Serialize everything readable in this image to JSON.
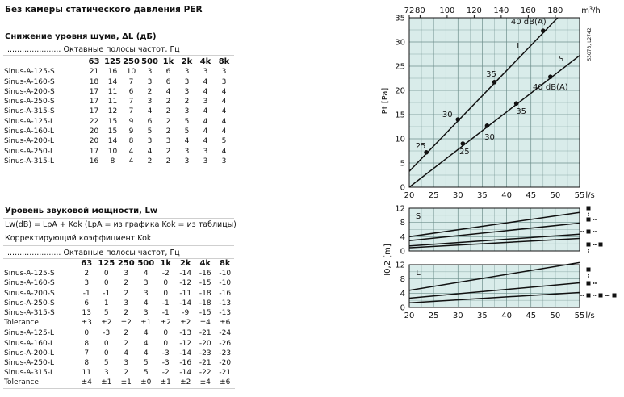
{
  "page": {
    "title": "Без камеры статического давления PER"
  },
  "attenuation": {
    "heading": "Снижение уровня шума, ΔL (дБ)",
    "band_label": "....................... Октавные полосы частот, Гц",
    "headers": [
      "63",
      "125",
      "250",
      "500",
      "1k",
      "2k",
      "4k",
      "8k"
    ],
    "rows": [
      {
        "name": "Sinus-A-125-S",
        "values": [
          "21",
          "16",
          "10",
          "3",
          "6",
          "3",
          "3",
          "3"
        ]
      },
      {
        "name": "Sinus-A-160-S",
        "values": [
          "18",
          "14",
          "7",
          "3",
          "6",
          "3",
          "4",
          "3"
        ]
      },
      {
        "name": "Sinus-A-200-S",
        "values": [
          "17",
          "11",
          "6",
          "2",
          "4",
          "3",
          "4",
          "4"
        ]
      },
      {
        "name": "Sinus-A-250-S",
        "values": [
          "17",
          "11",
          "7",
          "3",
          "2",
          "2",
          "3",
          "4"
        ]
      },
      {
        "name": "Sinus-A-315-S",
        "values": [
          "17",
          "12",
          "7",
          "4",
          "2",
          "3",
          "4",
          "4"
        ]
      },
      {
        "name": "Sinus-A-125-L",
        "values": [
          "22",
          "15",
          "9",
          "6",
          "2",
          "5",
          "4",
          "4"
        ]
      },
      {
        "name": "Sinus-A-160-L",
        "values": [
          "20",
          "15",
          "9",
          "5",
          "2",
          "5",
          "4",
          "4"
        ]
      },
      {
        "name": "Sinus-A-200-L",
        "values": [
          "20",
          "14",
          "8",
          "3",
          "3",
          "4",
          "4",
          "5"
        ]
      },
      {
        "name": "Sinus-A-250-L",
        "values": [
          "17",
          "10",
          "4",
          "4",
          "2",
          "3",
          "3",
          "4"
        ]
      },
      {
        "name": "Sinus-A-315-L",
        "values": [
          "16",
          "8",
          "4",
          "2",
          "2",
          "3",
          "3",
          "3"
        ]
      }
    ]
  },
  "sound_power": {
    "heading": "Уровень звуковой мощности, Lw",
    "formula": "Lw(dB) = LpA + Kok (LpA = из графика Kok = из таблицы)",
    "correction": "Корректирующий коэффициент Kok",
    "band_label": "....................... Октавные полосы частот, Гц",
    "headers": [
      "63",
      "125",
      "250",
      "500",
      "1k",
      "2k",
      "4k",
      "8k"
    ],
    "rows": [
      {
        "name": "Sinus-A-125-S",
        "values": [
          "2",
          "0",
          "3",
          "4",
          "-2",
          "-14",
          "-16",
          "-10"
        ]
      },
      {
        "name": "Sinus-A-160-S",
        "values": [
          "3",
          "0",
          "2",
          "3",
          "0",
          "-12",
          "-15",
          "-10"
        ]
      },
      {
        "name": "Sinus-A-200-S",
        "values": [
          "-1",
          "-1",
          "2",
          "3",
          "0",
          "-11",
          "-18",
          "-16"
        ]
      },
      {
        "name": "Sinus-A-250-S",
        "values": [
          "6",
          "1",
          "3",
          "4",
          "-1",
          "-14",
          "-18",
          "-13"
        ]
      },
      {
        "name": "Sinus-A-315-S",
        "values": [
          "13",
          "5",
          "2",
          "3",
          "-1",
          "-9",
          "-15",
          "-13"
        ]
      },
      {
        "name": "Tolerance",
        "tol": true,
        "values": [
          "±3",
          "±2",
          "±2",
          "±1",
          "±2",
          "±2",
          "±4",
          "±6"
        ]
      },
      {
        "name": "Sinus-A-125-L",
        "values": [
          "0",
          "-3",
          "2",
          "4",
          "0",
          "-13",
          "-21",
          "-24"
        ]
      },
      {
        "name": "Sinus-A-160-L",
        "values": [
          "8",
          "0",
          "2",
          "4",
          "0",
          "-12",
          "-20",
          "-26"
        ]
      },
      {
        "name": "Sinus-A-200-L",
        "values": [
          "7",
          "0",
          "4",
          "4",
          "-3",
          "-14",
          "-23",
          "-23"
        ]
      },
      {
        "name": "Sinus-A-250-L",
        "values": [
          "8",
          "5",
          "3",
          "5",
          "-3",
          "-16",
          "-21",
          "-20"
        ]
      },
      {
        "name": "Sinus-A-315-L",
        "values": [
          "11",
          "3",
          "2",
          "5",
          "-2",
          "-14",
          "-22",
          "-21"
        ]
      },
      {
        "name": "Tolerance",
        "tol": true,
        "values": [
          "±4",
          "±1",
          "±1",
          "±0",
          "±1",
          "±2",
          "±4",
          "±6"
        ]
      }
    ]
  },
  "chart_data": [
    {
      "type": "line",
      "ylabel": "Pt [Pa]",
      "xlabel": "l/s",
      "x2label": "m³/h",
      "code": "S3078, L2742",
      "xlim": [
        20,
        55
      ],
      "ylim": [
        0,
        35
      ],
      "x_ticks": [
        20,
        25,
        30,
        35,
        40,
        45,
        50,
        55
      ],
      "y_ticks": [
        0,
        5,
        10,
        15,
        20,
        25,
        30,
        35
      ],
      "x2_ticks": [
        72,
        80,
        100,
        120,
        140,
        160,
        180
      ],
      "grid": true,
      "series": [
        {
          "name": "L",
          "x": [
            20,
            50.5
          ],
          "y": [
            3.3,
            35
          ],
          "points": [
            {
              "x": 23.5,
              "y": 7.2,
              "label": "25"
            },
            {
              "x": 30.0,
              "y": 14.0,
              "label": "30"
            },
            {
              "x": 37.5,
              "y": 21.7,
              "label": "35"
            },
            {
              "x": 47.5,
              "y": 32.3,
              "label": "40 dB(A)"
            }
          ]
        },
        {
          "name": "S",
          "x": [
            20,
            55
          ],
          "y": [
            0,
            27.2
          ],
          "points": [
            {
              "x": 31.0,
              "y": 9.0,
              "label": "25"
            },
            {
              "x": 36.0,
              "y": 12.7,
              "label": "30"
            },
            {
              "x": 42.0,
              "y": 17.3,
              "label": "35"
            },
            {
              "x": 49.0,
              "y": 22.8,
              "label": "40 dB(A)"
            }
          ]
        }
      ]
    },
    {
      "type": "line",
      "panel": "S",
      "ylabel": "I0,2 [m]",
      "xlim": [
        20,
        55
      ],
      "ylim": [
        0,
        12
      ],
      "y_ticks": [
        0,
        4,
        8,
        12
      ],
      "grid": true,
      "series": [
        {
          "x": [
            20,
            55
          ],
          "y": [
            4.0,
            10.8
          ]
        },
        {
          "x": [
            20,
            55
          ],
          "y": [
            2.9,
            7.8
          ]
        },
        {
          "x": [
            20,
            55
          ],
          "y": [
            1.4,
            4.7
          ]
        },
        {
          "x": [
            20,
            55
          ],
          "y": [
            0.9,
            3.5
          ]
        }
      ]
    },
    {
      "type": "line",
      "panel": "L",
      "xlabel": "l/s",
      "xlim": [
        20,
        55
      ],
      "ylim": [
        0,
        12
      ],
      "x_ticks": [
        20,
        25,
        30,
        35,
        40,
        45,
        50,
        55
      ],
      "y_ticks": [
        0,
        4,
        8,
        12
      ],
      "grid": true,
      "series": [
        {
          "x": [
            20,
            55
          ],
          "y": [
            4.8,
            12.6
          ]
        },
        {
          "x": [
            20,
            55
          ],
          "y": [
            2.6,
            6.9
          ]
        },
        {
          "x": [
            20,
            55
          ],
          "y": [
            1.3,
            4.2
          ]
        }
      ]
    }
  ]
}
